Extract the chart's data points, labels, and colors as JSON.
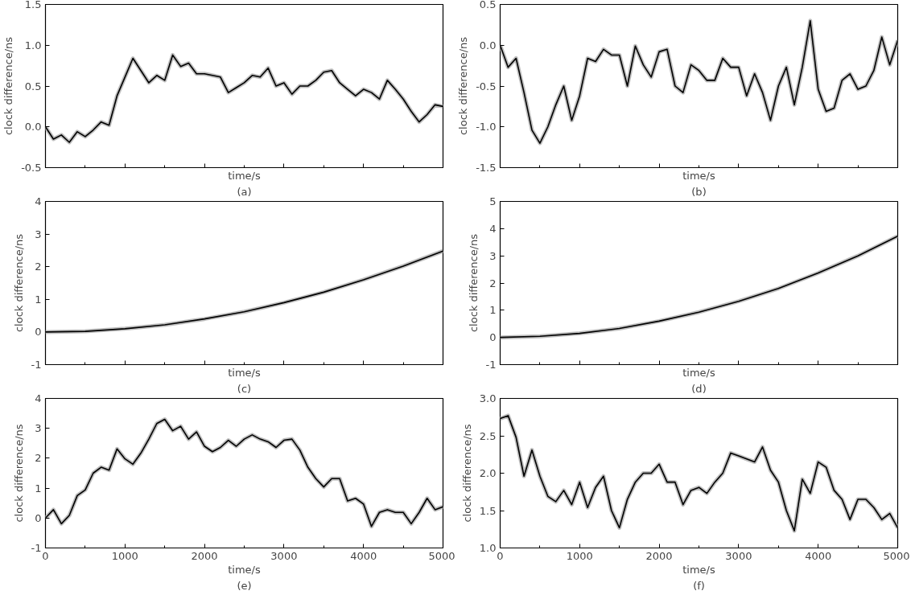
{
  "chart_data": [
    {
      "type": "line",
      "xlabel": "time/s",
      "ylabel": "clock difference/ns",
      "annotations": [
        "(a)"
      ],
      "tick_labels": "y",
      "xlim": [
        0,
        5000
      ],
      "xticks": [
        0,
        1000,
        2000,
        3000,
        4000,
        5000
      ],
      "ylim": [
        -0.5,
        1.5
      ],
      "yticks": [
        {
          "value": -0.5,
          "label": "-0.5"
        },
        {
          "value": 0,
          "label": "0.0"
        },
        {
          "value": 0.5,
          "label": "0.5"
        },
        {
          "value": 1,
          "label": "1.0"
        },
        {
          "value": 1.5,
          "label": "1.5"
        }
      ],
      "x": [
        0,
        100,
        200,
        300,
        400,
        500,
        600,
        700,
        800,
        900,
        1000,
        1100,
        1200,
        1300,
        1400,
        1500,
        1600,
        1700,
        1800,
        1900,
        2000,
        2100,
        2200,
        2300,
        2400,
        2500,
        2600,
        2700,
        2800,
        2900,
        3000,
        3100,
        3200,
        3300,
        3400,
        3500,
        3600,
        3700,
        3800,
        3900,
        4000,
        4100,
        4200,
        4300,
        4400,
        4500,
        4600,
        4700,
        4800,
        4900,
        5000
      ],
      "series": [
        {
          "color": "#bfbfbf",
          "values": [
            0.0,
            -0.15,
            -0.1,
            -0.19,
            -0.06,
            -0.12,
            -0.04,
            0.06,
            0.02,
            0.38,
            0.61,
            0.84,
            0.69,
            0.54,
            0.63,
            0.57,
            0.88,
            0.74,
            0.78,
            0.65,
            0.65,
            0.63,
            0.61,
            0.42,
            0.48,
            0.54,
            0.63,
            0.61,
            0.72,
            0.5,
            0.54,
            0.4,
            0.5,
            0.5,
            0.57,
            0.67,
            0.69,
            0.54,
            0.46,
            0.38,
            0.46,
            0.42,
            0.34,
            0.57,
            0.46,
            0.34,
            0.19,
            0.06,
            0.15,
            0.27,
            0.25
          ]
        },
        {
          "color": "#000000",
          "values": [
            0.0,
            -0.15,
            -0.1,
            -0.19,
            -0.06,
            -0.12,
            -0.04,
            0.06,
            0.02,
            0.38,
            0.61,
            0.84,
            0.69,
            0.54,
            0.63,
            0.57,
            0.88,
            0.74,
            0.78,
            0.65,
            0.65,
            0.63,
            0.61,
            0.42,
            0.48,
            0.54,
            0.63,
            0.61,
            0.72,
            0.5,
            0.54,
            0.4,
            0.5,
            0.5,
            0.57,
            0.67,
            0.69,
            0.54,
            0.46,
            0.38,
            0.46,
            0.42,
            0.34,
            0.57,
            0.46,
            0.34,
            0.19,
            0.06,
            0.15,
            0.27,
            0.25
          ]
        }
      ]
    },
    {
      "type": "line",
      "xlabel": "time/s",
      "ylabel": "clock difference/ns",
      "annotations": [
        "(b)"
      ],
      "tick_labels": "y",
      "xlim": [
        0,
        5000
      ],
      "xticks": [
        0,
        1000,
        2000,
        3000,
        4000,
        5000
      ],
      "ylim": [
        -1.5,
        0.5
      ],
      "yticks": [
        {
          "value": -1.5,
          "label": "-1.5"
        },
        {
          "value": -1,
          "label": "-1.0"
        },
        {
          "value": -0.5,
          "label": "-0.5"
        },
        {
          "value": 0,
          "label": "0.0"
        },
        {
          "value": 0.5,
          "label": "0.5"
        }
      ],
      "x": [
        0,
        100,
        200,
        300,
        400,
        500,
        600,
        700,
        800,
        900,
        1000,
        1100,
        1200,
        1300,
        1400,
        1500,
        1600,
        1700,
        1800,
        1900,
        2000,
        2100,
        2200,
        2300,
        2400,
        2500,
        2600,
        2700,
        2800,
        2900,
        3000,
        3100,
        3200,
        3300,
        3400,
        3500,
        3600,
        3700,
        3800,
        3900,
        4000,
        4100,
        4200,
        4300,
        4400,
        4500,
        4600,
        4700,
        4800,
        4900,
        5000
      ],
      "series": [
        {
          "color": "#bfbfbf",
          "values": [
            0.0,
            -0.27,
            -0.16,
            -0.58,
            -1.04,
            -1.2,
            -1.0,
            -0.73,
            -0.5,
            -0.92,
            -0.62,
            -0.16,
            -0.2,
            -0.05,
            -0.12,
            -0.12,
            -0.5,
            -0.01,
            -0.24,
            -0.39,
            -0.08,
            -0.05,
            -0.5,
            -0.58,
            -0.24,
            -0.31,
            -0.43,
            -0.43,
            -0.16,
            -0.27,
            -0.27,
            -0.62,
            -0.35,
            -0.58,
            -0.92,
            -0.5,
            -0.27,
            -0.73,
            -0.27,
            0.3,
            -0.54,
            -0.81,
            -0.77,
            -0.43,
            -0.35,
            -0.54,
            -0.5,
            -0.31,
            0.1,
            -0.24,
            0.06
          ]
        },
        {
          "color": "#000000",
          "values": [
            0.0,
            -0.27,
            -0.16,
            -0.58,
            -1.04,
            -1.2,
            -1.0,
            -0.73,
            -0.5,
            -0.92,
            -0.62,
            -0.16,
            -0.2,
            -0.05,
            -0.12,
            -0.12,
            -0.5,
            -0.01,
            -0.24,
            -0.39,
            -0.08,
            -0.05,
            -0.5,
            -0.58,
            -0.24,
            -0.31,
            -0.43,
            -0.43,
            -0.16,
            -0.27,
            -0.27,
            -0.62,
            -0.35,
            -0.58,
            -0.92,
            -0.5,
            -0.27,
            -0.73,
            -0.27,
            0.3,
            -0.54,
            -0.81,
            -0.77,
            -0.43,
            -0.35,
            -0.54,
            -0.5,
            -0.31,
            0.1,
            -0.24,
            0.06
          ]
        }
      ]
    },
    {
      "type": "line",
      "xlabel": "time/s",
      "ylabel": "clock difference/ns",
      "annotations": [
        "(c)"
      ],
      "tick_labels": "y",
      "xlim": [
        0,
        5000
      ],
      "xticks": [
        0,
        1000,
        2000,
        3000,
        4000,
        5000
      ],
      "ylim": [
        -1,
        4
      ],
      "yticks": [
        -1,
        0,
        1,
        2,
        3,
        4
      ],
      "x": [
        0,
        500,
        1000,
        1500,
        2000,
        2500,
        3000,
        3500,
        4000,
        4500,
        5000
      ],
      "series": [
        {
          "color": "#bfbfbf",
          "values": [
            0,
            0.02,
            0.1,
            0.22,
            0.4,
            0.62,
            0.9,
            1.22,
            1.6,
            2.02,
            2.48
          ]
        },
        {
          "color": "#000000",
          "values": [
            0,
            0.02,
            0.1,
            0.22,
            0.4,
            0.62,
            0.9,
            1.22,
            1.6,
            2.02,
            2.48
          ]
        }
      ]
    },
    {
      "type": "line",
      "xlabel": "time/s",
      "ylabel": "clock difference/ns",
      "annotations": [
        "(d)"
      ],
      "tick_labels": "y",
      "xlim": [
        0,
        5000
      ],
      "xticks": [
        0,
        1000,
        2000,
        3000,
        4000,
        5000
      ],
      "ylim": [
        -1,
        5
      ],
      "yticks": [
        -1,
        0,
        1,
        2,
        3,
        4,
        5
      ],
      "x": [
        0,
        500,
        1000,
        1500,
        2000,
        2500,
        3000,
        3500,
        4000,
        4500,
        5000
      ],
      "series": [
        {
          "color": "#bfbfbf",
          "values": [
            0,
            0.04,
            0.15,
            0.33,
            0.6,
            0.93,
            1.33,
            1.8,
            2.37,
            3.0,
            3.72
          ]
        },
        {
          "color": "#000000",
          "values": [
            0,
            0.04,
            0.15,
            0.33,
            0.6,
            0.93,
            1.33,
            1.8,
            2.37,
            3.0,
            3.72
          ]
        }
      ]
    },
    {
      "type": "line",
      "xlabel": "time/s",
      "ylabel": "clock difference/ns",
      "annotations": [
        "(e)"
      ],
      "xlim": [
        0,
        5000
      ],
      "xticks": [
        0,
        1000,
        2000,
        3000,
        4000,
        5000
      ],
      "ylim": [
        -1,
        4
      ],
      "yticks": [
        -1,
        0,
        1,
        2,
        3,
        4
      ],
      "x": [
        0,
        100,
        200,
        300,
        400,
        500,
        600,
        700,
        800,
        900,
        1000,
        1100,
        1200,
        1300,
        1400,
        1500,
        1600,
        1700,
        1800,
        1900,
        2000,
        2100,
        2200,
        2300,
        2400,
        2500,
        2600,
        2700,
        2800,
        2900,
        3000,
        3100,
        3200,
        3300,
        3400,
        3500,
        3600,
        3700,
        3800,
        3900,
        4000,
        4100,
        4200,
        4300,
        4400,
        4500,
        4600,
        4700,
        4800,
        4900,
        5000
      ],
      "series": [
        {
          "color": "#bfbfbf",
          "values": [
            0.0,
            0.28,
            -0.19,
            0.09,
            0.75,
            0.94,
            1.5,
            1.7,
            1.6,
            2.31,
            1.98,
            1.8,
            2.17,
            2.64,
            3.16,
            3.3,
            2.92,
            3.07,
            2.64,
            2.88,
            2.4,
            2.22,
            2.36,
            2.6,
            2.4,
            2.64,
            2.78,
            2.64,
            2.55,
            2.36,
            2.6,
            2.64,
            2.27,
            1.7,
            1.32,
            1.04,
            1.32,
            1.32,
            0.57,
            0.66,
            0.47,
            -0.28,
            0.19,
            0.28,
            0.19,
            0.19,
            -0.19,
            0.19,
            0.66,
            0.28,
            0.38
          ]
        },
        {
          "color": "#000000",
          "values": [
            0.0,
            0.28,
            -0.19,
            0.09,
            0.75,
            0.94,
            1.5,
            1.7,
            1.6,
            2.31,
            1.98,
            1.8,
            2.17,
            2.64,
            3.16,
            3.3,
            2.92,
            3.07,
            2.64,
            2.88,
            2.4,
            2.22,
            2.36,
            2.6,
            2.4,
            2.64,
            2.78,
            2.64,
            2.55,
            2.36,
            2.6,
            2.64,
            2.27,
            1.7,
            1.32,
            1.04,
            1.32,
            1.32,
            0.57,
            0.66,
            0.47,
            -0.28,
            0.19,
            0.28,
            0.19,
            0.19,
            -0.19,
            0.19,
            0.66,
            0.28,
            0.38
          ]
        }
      ]
    },
    {
      "type": "line",
      "xlabel": "time/s",
      "ylabel": "clock difference/ns",
      "annotations": [
        "(f)"
      ],
      "xlim": [
        0,
        5000
      ],
      "xticks": [
        0,
        1000,
        2000,
        3000,
        4000,
        5000
      ],
      "ylim": [
        1,
        3
      ],
      "yticks": [
        {
          "value": 1,
          "label": "1.0"
        },
        {
          "value": 1.5,
          "label": "1.5"
        },
        {
          "value": 2,
          "label": "2.0"
        },
        {
          "value": 2.5,
          "label": "2.5"
        },
        {
          "value": 3,
          "label": "3.0"
        }
      ],
      "x": [
        0,
        100,
        200,
        300,
        400,
        500,
        600,
        700,
        800,
        900,
        1000,
        1100,
        1200,
        1300,
        1400,
        1500,
        1600,
        1700,
        1800,
        1900,
        2000,
        2100,
        2200,
        2300,
        2400,
        2500,
        2600,
        2700,
        2800,
        2900,
        3000,
        3100,
        3200,
        3300,
        3400,
        3500,
        3600,
        3700,
        3800,
        3900,
        4000,
        4100,
        4200,
        4300,
        4400,
        4500,
        4600,
        4700,
        4800,
        4900,
        5000
      ],
      "series": [
        {
          "color": "#bfbfbf",
          "values": [
            2.73,
            2.77,
            2.48,
            1.96,
            2.31,
            1.96,
            1.69,
            1.62,
            1.77,
            1.58,
            1.88,
            1.54,
            1.81,
            1.96,
            1.5,
            1.27,
            1.65,
            1.88,
            2.0,
            2.0,
            2.12,
            1.88,
            1.88,
            1.58,
            1.77,
            1.81,
            1.73,
            1.88,
            2.0,
            2.27,
            2.23,
            2.19,
            2.15,
            2.35,
            2.04,
            1.88,
            1.5,
            1.23,
            1.92,
            1.73,
            2.15,
            2.08,
            1.77,
            1.65,
            1.38,
            1.65,
            1.65,
            1.54,
            1.38,
            1.46,
            1.27
          ]
        },
        {
          "color": "#000000",
          "values": [
            2.73,
            2.77,
            2.48,
            1.96,
            2.31,
            1.96,
            1.69,
            1.62,
            1.77,
            1.58,
            1.88,
            1.54,
            1.81,
            1.96,
            1.5,
            1.27,
            1.65,
            1.88,
            2.0,
            2.0,
            2.12,
            1.88,
            1.88,
            1.58,
            1.77,
            1.81,
            1.73,
            1.88,
            2.0,
            2.27,
            2.23,
            2.19,
            2.15,
            2.35,
            2.04,
            1.88,
            1.5,
            1.23,
            1.92,
            1.73,
            2.15,
            2.08,
            1.77,
            1.65,
            1.38,
            1.65,
            1.65,
            1.54,
            1.38,
            1.46,
            1.27
          ]
        }
      ]
    }
  ]
}
